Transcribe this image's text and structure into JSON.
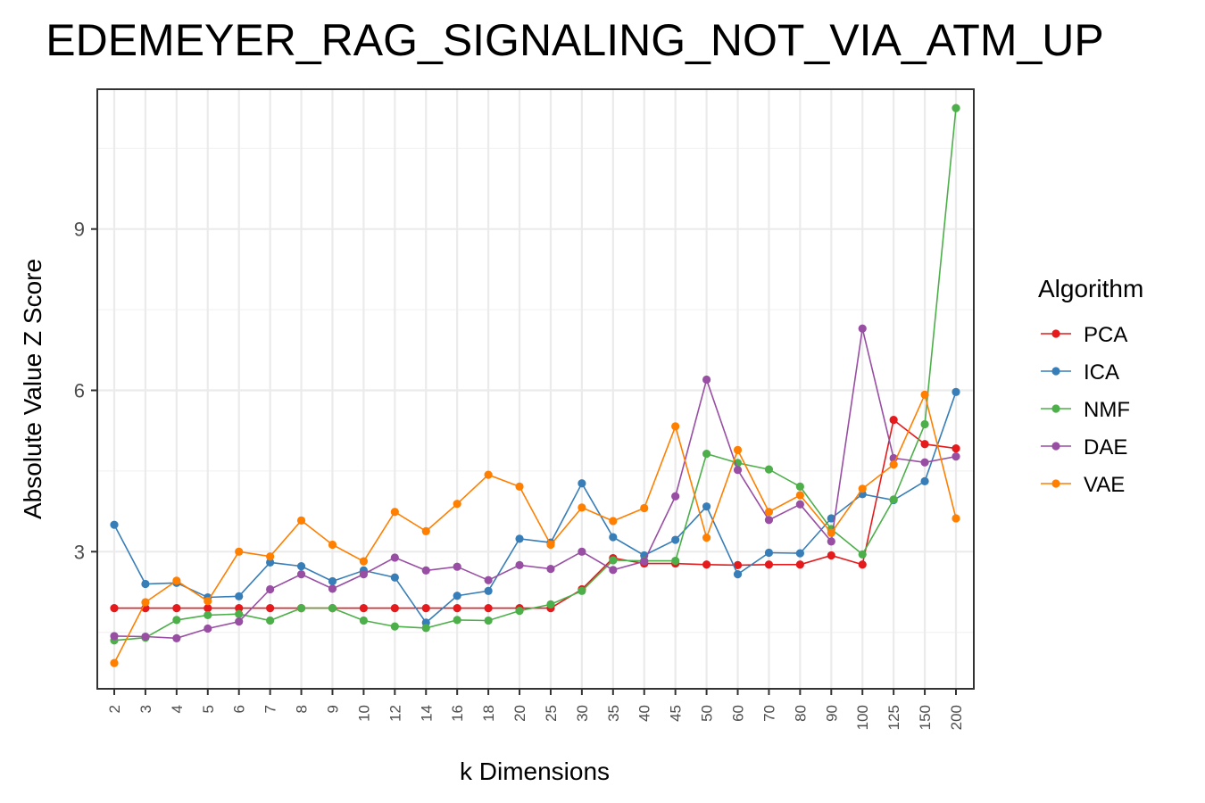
{
  "chart_data": {
    "type": "line",
    "title": "EDEMEYER_RAG_SIGNALING_NOT_VIA_ATM_UP",
    "xlabel": "k Dimensions",
    "ylabel": "Absolute Value Z Score",
    "categories": [
      "2",
      "3",
      "4",
      "5",
      "6",
      "7",
      "8",
      "9",
      "10",
      "12",
      "14",
      "16",
      "18",
      "20",
      "25",
      "30",
      "35",
      "40",
      "45",
      "50",
      "60",
      "70",
      "80",
      "90",
      "100",
      "125",
      "150",
      "200"
    ],
    "yticks": [
      3,
      6,
      9
    ],
    "ylim": [
      0.45,
      11.6
    ],
    "legend_title": "Algorithm",
    "legend_position": "right",
    "grid": true,
    "series": [
      {
        "name": "PCA",
        "color": "#E41A1C",
        "values": [
          1.95,
          1.95,
          1.95,
          1.95,
          1.95,
          1.95,
          1.95,
          1.95,
          1.95,
          1.95,
          1.95,
          1.95,
          1.95,
          1.95,
          1.95,
          2.3,
          2.88,
          2.78,
          2.78,
          2.76,
          2.75,
          2.76,
          2.76,
          2.93,
          2.76,
          5.45,
          5.0,
          4.92
        ]
      },
      {
        "name": "ICA",
        "color": "#377EB8",
        "values": [
          3.5,
          2.4,
          2.42,
          2.15,
          2.17,
          2.8,
          2.73,
          2.45,
          2.65,
          2.52,
          1.68,
          2.18,
          2.27,
          3.24,
          3.17,
          4.27,
          3.27,
          2.93,
          3.22,
          3.84,
          2.58,
          2.98,
          2.97,
          3.62,
          4.07,
          3.96,
          4.31,
          5.97
        ]
      },
      {
        "name": "NMF",
        "color": "#4DAF4A",
        "values": [
          1.35,
          1.4,
          1.73,
          1.82,
          1.84,
          1.72,
          1.95,
          1.95,
          1.72,
          1.61,
          1.58,
          1.73,
          1.72,
          1.9,
          2.02,
          2.27,
          2.84,
          2.83,
          2.83,
          4.82,
          4.65,
          4.53,
          4.21,
          3.42,
          2.95,
          3.97,
          5.37,
          11.25
        ]
      },
      {
        "name": "DAE",
        "color": "#984EA3",
        "values": [
          1.43,
          1.42,
          1.39,
          1.57,
          1.7,
          2.3,
          2.58,
          2.31,
          2.58,
          2.89,
          2.65,
          2.72,
          2.47,
          2.75,
          2.68,
          3.0,
          2.66,
          2.82,
          4.03,
          6.2,
          4.52,
          3.59,
          3.88,
          3.19,
          7.15,
          4.74,
          4.66,
          4.77
        ]
      },
      {
        "name": "VAE",
        "color": "#FF7F00",
        "values": [
          0.93,
          2.06,
          2.46,
          2.08,
          3.0,
          2.91,
          3.58,
          3.13,
          2.82,
          3.74,
          3.38,
          3.89,
          4.43,
          4.21,
          3.13,
          3.82,
          3.57,
          3.81,
          5.33,
          3.26,
          4.89,
          3.74,
          4.05,
          3.35,
          4.17,
          4.62,
          5.92,
          3.62
        ]
      }
    ]
  }
}
